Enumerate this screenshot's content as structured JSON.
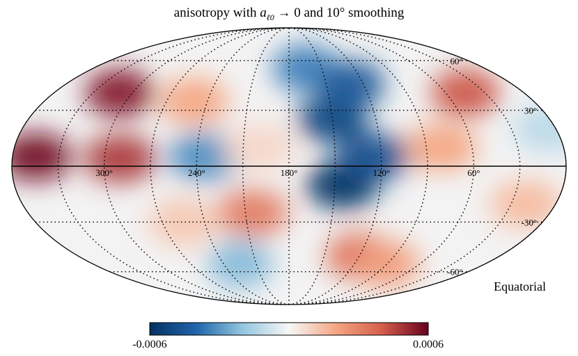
{
  "chart_data": {
    "type": "heatmap",
    "projection": "mollweide",
    "title_prefix": "anisotropy with ",
    "title_math_var": "a",
    "title_math_sub": "ℓ0",
    "title_suffix": " → 0 and 10° smoothing",
    "coordinate_frame": "Equatorial",
    "longitude_labels": [
      "300°",
      "240°",
      "180°",
      "120°",
      "60°"
    ],
    "longitude_values": [
      300,
      240,
      180,
      120,
      60
    ],
    "latitude_labels": [
      "60°",
      "30°",
      "-30°",
      "-60°"
    ],
    "latitude_values": [
      60,
      30,
      -30,
      -60
    ],
    "colorbar": {
      "min_label": "-0.0006",
      "max_label": "0.0006",
      "vmin": -0.0006,
      "vmax": 0.0006,
      "colormap": "RdBu_r"
    },
    "features_note_lon_lat_amplitude": [
      [
        345,
        5,
        0.00058
      ],
      [
        290,
        4,
        0.00048
      ],
      [
        310,
        40,
        0.00055
      ],
      [
        250,
        35,
        0.0002
      ],
      [
        235,
        5,
        -0.00032
      ],
      [
        165,
        55,
        -0.00035
      ],
      [
        150,
        25,
        -0.00052
      ],
      [
        145,
        -10,
        -0.0006
      ],
      [
        125,
        5,
        -0.00048
      ],
      [
        130,
        45,
        -0.00045
      ],
      [
        45,
        40,
        0.00042
      ],
      [
        80,
        10,
        0.0002
      ],
      [
        205,
        -25,
        0.00032
      ],
      [
        225,
        -55,
        -0.00022
      ],
      [
        120,
        -50,
        0.00035
      ],
      [
        90,
        -55,
        0.00022
      ],
      [
        255,
        -30,
        0.00012
      ],
      [
        20,
        -20,
        0.00015
      ],
      [
        5,
        20,
        -0.00012
      ],
      [
        200,
        10,
        8e-05
      ]
    ]
  },
  "colors": {
    "neg_dark": "#053061",
    "neg_mid": "#2166ac",
    "neg_light": "#92c5de",
    "zero": "#f7f7f7",
    "pos_light": "#f4a582",
    "pos_mid": "#d6604d",
    "pos_dark": "#67001f"
  }
}
